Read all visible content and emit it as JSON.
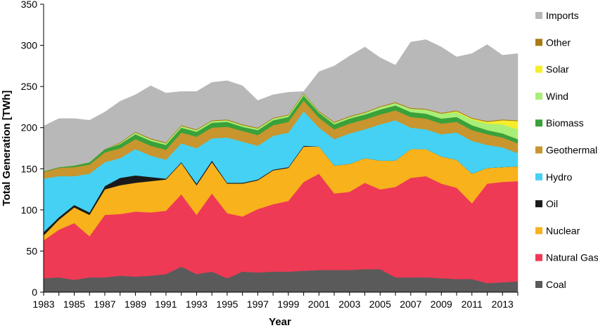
{
  "chart_data": {
    "type": "area",
    "stacked": true,
    "title": "",
    "xlabel": "Year",
    "ylabel": "Total Generation [TWh]",
    "xlim": [
      1983,
      2014
    ],
    "ylim": [
      0,
      350
    ],
    "yticks": [
      0,
      50,
      100,
      150,
      200,
      250,
      300,
      350
    ],
    "xticks": [
      1983,
      1985,
      1987,
      1989,
      1991,
      1993,
      1995,
      1997,
      1999,
      2001,
      2003,
      2005,
      2007,
      2009,
      2011,
      2013
    ],
    "grid": false,
    "legend_position": "right",
    "x": [
      1983,
      1984,
      1985,
      1986,
      1987,
      1988,
      1989,
      1990,
      1991,
      1992,
      1993,
      1994,
      1995,
      1996,
      1997,
      1998,
      1999,
      2000,
      2001,
      2002,
      2003,
      2004,
      2005,
      2006,
      2007,
      2008,
      2009,
      2010,
      2011,
      2012,
      2013,
      2014
    ],
    "series": [
      {
        "name": "Coal",
        "color": "#5a5a5a",
        "values": [
          17,
          18,
          15,
          18,
          18,
          20,
          19,
          20,
          22,
          31,
          22,
          25,
          17,
          25,
          24,
          25,
          25,
          26,
          27,
          27,
          27,
          28,
          28,
          18,
          18,
          18,
          17,
          16,
          16,
          11,
          12,
          13
        ]
      },
      {
        "name": "Natural Gas",
        "color": "#ee3a55",
        "values": [
          46,
          58,
          69,
          50,
          76,
          75,
          79,
          77,
          77,
          88,
          72,
          95,
          79,
          67,
          77,
          82,
          86,
          108,
          117,
          93,
          95,
          105,
          97,
          110,
          121,
          123,
          115,
          111,
          92,
          121,
          122,
          122
        ]
      },
      {
        "name": "Nuclear",
        "color": "#f8b21c",
        "values": [
          6,
          12,
          19,
          26,
          31,
          35,
          35,
          38,
          38,
          38,
          36,
          38,
          36,
          40,
          35,
          41,
          40,
          43,
          33,
          34,
          34,
          30,
          35,
          32,
          35,
          33,
          33,
          34,
          36,
          19,
          18,
          18
        ]
      },
      {
        "name": "Oil",
        "color": "#1a1a1a",
        "values": [
          4,
          3,
          3,
          3,
          4,
          9,
          9,
          5,
          1,
          1,
          2,
          2,
          1,
          1,
          1,
          1,
          1,
          1,
          0,
          0,
          0,
          0,
          0,
          0,
          0,
          0,
          0,
          0,
          0,
          0,
          0,
          0
        ]
      },
      {
        "name": "Hydro",
        "color": "#45d1f3",
        "values": [
          65,
          50,
          35,
          47,
          29,
          24,
          32,
          26,
          23,
          23,
          43,
          27,
          55,
          50,
          41,
          41,
          42,
          42,
          23,
          32,
          37,
          35,
          44,
          49,
          26,
          24,
          27,
          33,
          40,
          28,
          24,
          16
        ]
      },
      {
        "name": "Geothermal",
        "color": "#c8952e",
        "values": [
          8,
          10,
          11,
          11,
          12,
          12,
          12,
          12,
          12,
          13,
          14,
          13,
          13,
          13,
          13,
          13,
          13,
          13,
          12,
          12,
          12,
          12,
          12,
          12,
          13,
          13,
          13,
          13,
          13,
          13,
          12,
          12
        ]
      },
      {
        "name": "Biomass",
        "color": "#3aa13a",
        "values": [
          1,
          1,
          2,
          3,
          4,
          5,
          6,
          6,
          6,
          6,
          6,
          6,
          6,
          5,
          6,
          6,
          6,
          6,
          6,
          6,
          6,
          6,
          6,
          6,
          6,
          6,
          6,
          6,
          6,
          5,
          5,
          5
        ]
      },
      {
        "name": "Wind",
        "color": "#a9ee77",
        "values": [
          0,
          0,
          0,
          0,
          0,
          1,
          2,
          2,
          2,
          2,
          2,
          2,
          2,
          2,
          2,
          2,
          2,
          2,
          1,
          2,
          2,
          2,
          3,
          3,
          4,
          5,
          6,
          6,
          7,
          8,
          11,
          12
        ]
      },
      {
        "name": "Solar",
        "color": "#f6ee2a",
        "values": [
          0,
          0,
          0,
          0,
          0,
          0,
          0,
          0,
          0,
          0,
          0,
          0,
          0,
          0,
          0,
          0,
          0,
          0,
          0,
          0,
          0,
          0,
          0,
          0,
          0,
          0,
          0,
          1,
          1,
          2,
          5,
          10
        ]
      },
      {
        "name": "Other",
        "color": "#a77b15",
        "values": [
          0,
          0,
          0,
          0,
          0,
          1,
          1,
          1,
          1,
          1,
          1,
          1,
          1,
          1,
          1,
          1,
          1,
          1,
          1,
          1,
          1,
          1,
          1,
          1,
          1,
          1,
          1,
          1,
          1,
          1,
          1,
          1
        ]
      },
      {
        "name": "Imports",
        "color": "#b8b8b8",
        "values": [
          55,
          59,
          57,
          51,
          45,
          50,
          45,
          64,
          60,
          41,
          46,
          46,
          47,
          47,
          33,
          28,
          27,
          2,
          48,
          68,
          73,
          79,
          59,
          45,
          80,
          84,
          80,
          65,
          78,
          93,
          78,
          81
        ]
      }
    ]
  }
}
